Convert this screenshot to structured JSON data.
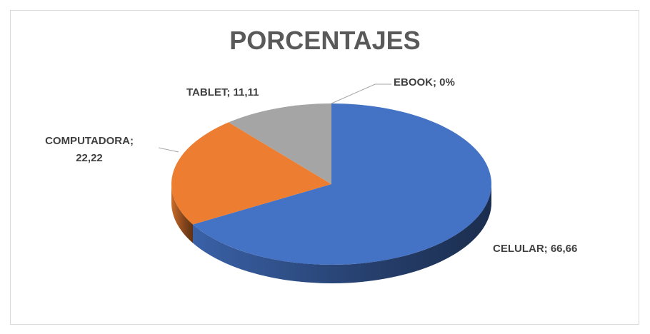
{
  "chart_data": {
    "type": "pie3d",
    "title": "PORCENTAJES",
    "categories": [
      "CELULAR",
      "COMPUTADORA",
      "TABLET",
      "EBOOK"
    ],
    "values": [
      66.66,
      22.22,
      11.11,
      0
    ],
    "value_labels": [
      "CELULAR; 66,66",
      "COMPUTADORA; 22,22",
      "TABLET; 11,11",
      "EBOOK; 0%"
    ],
    "colors": [
      "#4472c4",
      "#ed7d31",
      "#a5a5a5",
      "#ffc000"
    ]
  }
}
